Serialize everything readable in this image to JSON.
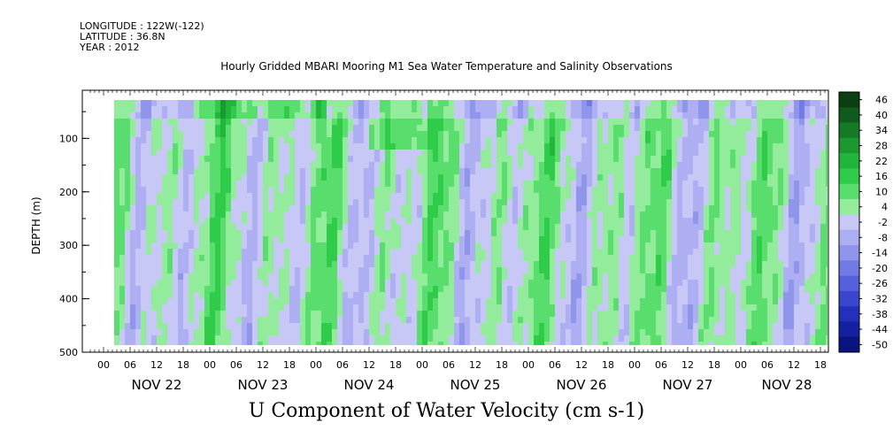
{
  "header": {
    "longitude": "LONGITUDE : 122W(-122)",
    "latitude": "LATITUDE : 36.8N",
    "year": "YEAR : 2012",
    "subtitle": "Hourly Gridded MBARI Mooring M1 Sea Water Temperature and Salinity Observations"
  },
  "chart_data": {
    "type": "heatmap",
    "title": "U Component of Water Velocity (cm s-1)",
    "ylabel": "DEPTH (m)",
    "xlabel": "",
    "y_reversed": true,
    "ylim": [
      500,
      10
    ],
    "y_ticks": [
      100,
      200,
      300,
      400,
      500
    ],
    "x_hour_ticks": [
      "00",
      "06",
      "12",
      "18",
      "00",
      "06",
      "12",
      "18",
      "00",
      "06",
      "12",
      "18",
      "00",
      "06",
      "12",
      "18",
      "00",
      "06",
      "12",
      "18",
      "00",
      "06",
      "12",
      "18",
      "00",
      "06",
      "12",
      "18"
    ],
    "x_day_labels": [
      "NOV 22",
      "NOV 23",
      "NOV 24",
      "NOV 25",
      "NOV 26",
      "NOV 27",
      "NOV 28"
    ],
    "colorbar": {
      "levels": [
        46,
        40,
        34,
        28,
        22,
        16,
        10,
        4,
        -2,
        -8,
        -14,
        -20,
        -26,
        -32,
        -38,
        -44,
        -50
      ],
      "colors": [
        "#0d3d12",
        "#0f5a1c",
        "#157a26",
        "#1b9930",
        "#22b53b",
        "#2fcc4a",
        "#59dd6d",
        "#93eb9c",
        "#c8c8f6",
        "#adaff2",
        "#9095ec",
        "#727be4",
        "#5560dc",
        "#3b46cf",
        "#2330bb",
        "#13209f",
        "#0a1480"
      ]
    },
    "data_pattern": "alternating bands of positive (green) and negative (blue) velocity with tidal periodicity; strongest eastward flow near surface on Nov 23"
  }
}
